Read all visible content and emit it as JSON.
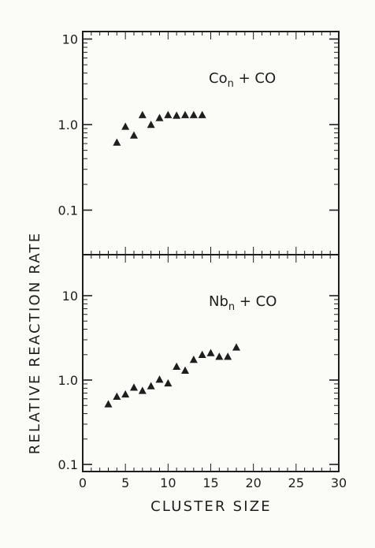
{
  "figure": {
    "ylabel": "RELATIVE REACTION RATE",
    "xlabel": "CLUSTER SIZE",
    "ink_color": "#1e1e1e",
    "background": "#fbfbf8"
  },
  "chart_data": [
    {
      "type": "scatter",
      "title": "",
      "annotation": {
        "base": "Co",
        "sub": "n",
        "rest": " + CO"
      },
      "y_scale": "log",
      "ylim": [
        0.1,
        10
      ],
      "xlim": [
        0,
        30
      ],
      "y_tick_labels": [
        "10",
        "1.0",
        "0.1"
      ],
      "x": [
        4,
        5,
        6,
        7,
        8,
        9,
        10,
        11,
        12,
        13,
        14
      ],
      "y": [
        0.62,
        0.95,
        0.75,
        1.3,
        1.0,
        1.2,
        1.3,
        1.28,
        1.3,
        1.3,
        1.3
      ],
      "marker": "filled-triangle",
      "grid": false
    },
    {
      "type": "scatter",
      "title": "",
      "annotation": {
        "base": "Nb",
        "sub": "n",
        "rest": " + CO"
      },
      "y_scale": "log",
      "ylim": [
        0.1,
        10
      ],
      "xlim": [
        0,
        30
      ],
      "y_tick_labels": [
        "10",
        "1.0",
        "0.1"
      ],
      "x_tick_labels": [
        "0",
        "5",
        "10",
        "15",
        "20",
        "25",
        "30"
      ],
      "x": [
        3,
        4,
        5,
        6,
        7,
        8,
        9,
        10,
        11,
        12,
        13,
        14,
        15,
        16,
        17,
        18
      ],
      "y": [
        0.52,
        0.64,
        0.68,
        0.82,
        0.75,
        0.85,
        1.02,
        0.92,
        1.45,
        1.3,
        1.75,
        2.0,
        2.1,
        1.9,
        1.9,
        2.45
      ],
      "marker": "filled-triangle",
      "grid": false
    }
  ]
}
